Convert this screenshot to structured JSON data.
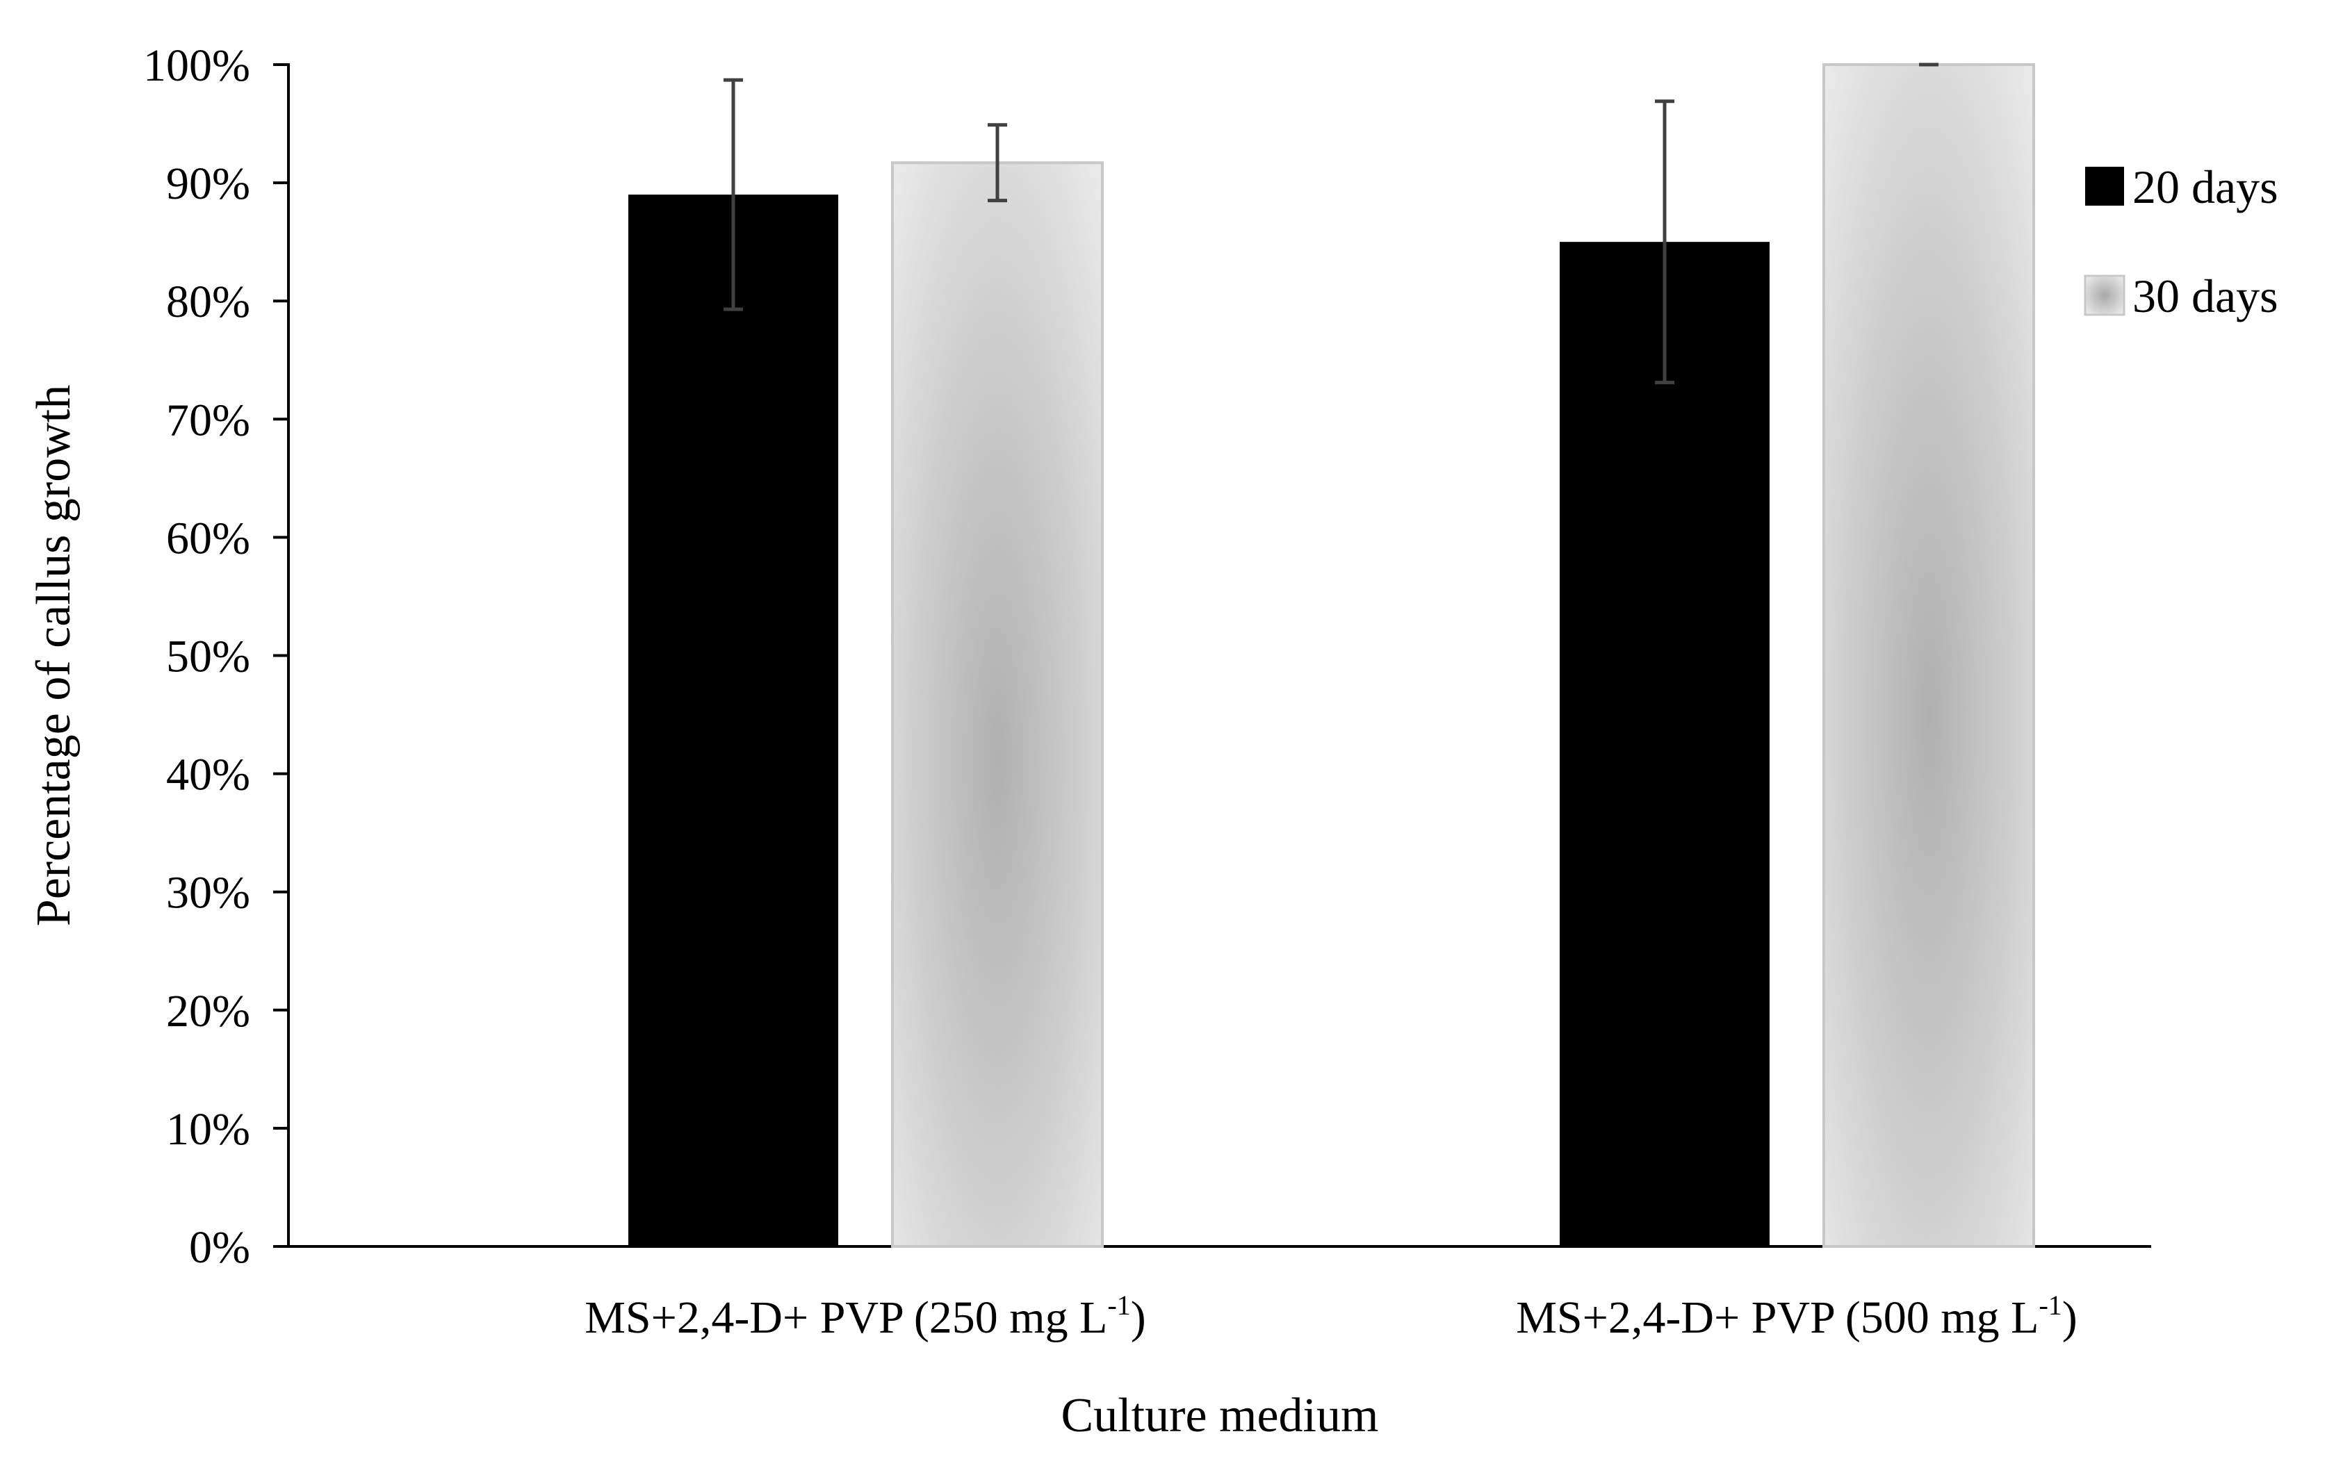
{
  "chart_data": {
    "type": "bar",
    "title": "",
    "xlabel": "Culture medium",
    "ylabel": "Percentage of callus growth",
    "ylim": [
      0,
      100
    ],
    "yticks": [
      0,
      10,
      20,
      30,
      40,
      50,
      60,
      70,
      80,
      90,
      100
    ],
    "ytick_labels": [
      "0%",
      "10%",
      "20%",
      "30%",
      "40%",
      "50%",
      "60%",
      "70%",
      "80%",
      "90%",
      "100%"
    ],
    "grid": false,
    "legend_position": "right",
    "categories": [
      {
        "base": "MS+2,4-D+ PVP (250 mg L",
        "sup": "-1",
        "end": ")"
      },
      {
        "base": "MS+2,4-D+ PVP (500 mg L",
        "sup": "-1",
        "end": ")"
      }
    ],
    "series": [
      {
        "name": "20 days",
        "color": "#000000",
        "values": [
          89,
          85
        ],
        "errors": [
          9.7,
          11.9
        ]
      },
      {
        "name": "30 days",
        "color": "#c2c2c2",
        "values": [
          91.7,
          100
        ],
        "errors": [
          3.2,
          0
        ]
      }
    ]
  }
}
